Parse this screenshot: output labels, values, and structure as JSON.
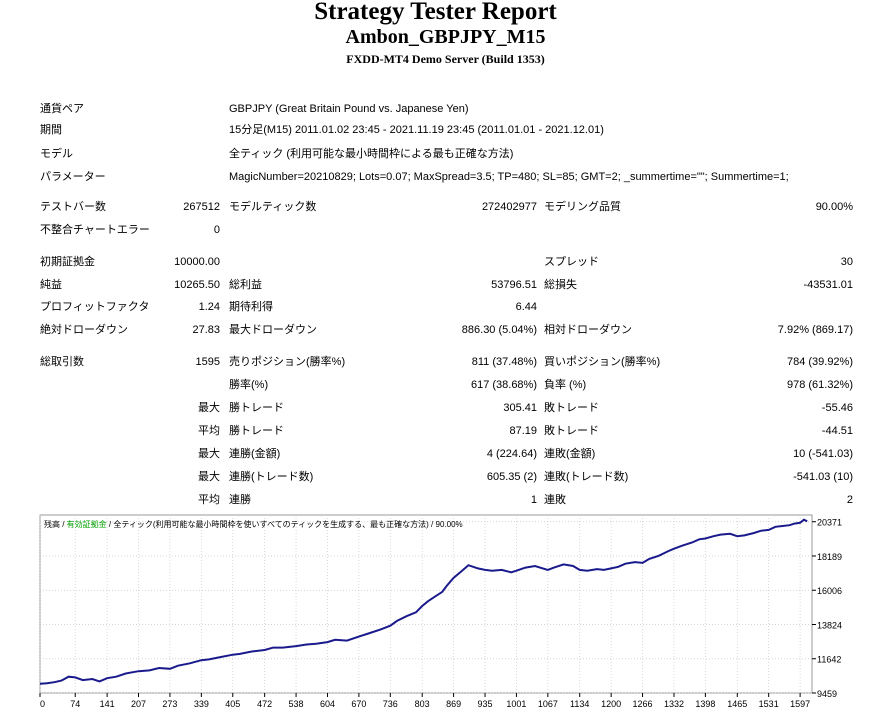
{
  "header": {
    "title": "Strategy Tester Report",
    "subtitle": "Ambon_GBPJPY_M15",
    "server": "FXDD-MT4 Demo Server (Build 1353)"
  },
  "info": [
    {
      "label": "通貨ペア",
      "value": "GBPJPY (Great Britain Pound vs. Japanese Yen)"
    },
    {
      "label": "期間",
      "value": "15分足(M15) 2011.01.02 23:45 - 2021.11.19 23:45 (2011.01.01 - 2021.12.01)"
    },
    {
      "label": "モデル",
      "value": "全ティック (利用可能な最小時間枠による最も正確な方法)"
    },
    {
      "label": "パラメーター",
      "value": "MagicNumber=20210829; Lots=0.07; MaxSpread=3.5; TP=480; SL=85; GMT=2; _summertime=\"\"; Summertime=1;"
    }
  ],
  "stats": {
    "bars_label": "テストバー数",
    "bars_value": "267512",
    "ticks_label": "モデルティック数",
    "ticks_value": "272402977",
    "quality_label": "モデリング品質",
    "quality_value": "90.00%",
    "mismatch_label": "不整合チャートエラー",
    "mismatch_value": "0",
    "deposit_label": "初期証拠金",
    "deposit_value": "10000.00",
    "spread_label": "スプレッド",
    "spread_value": "30",
    "net_label": "純益",
    "net_value": "10265.50",
    "gross_profit_label": "総利益",
    "gross_profit_value": "53796.51",
    "gross_loss_label": "総損失",
    "gross_loss_value": "-43531.01",
    "pf_label": "プロフィットファクタ",
    "pf_value": "1.24",
    "expected_label": "期待利得",
    "expected_value": "6.44",
    "abs_dd_label": "絶対ドローダウン",
    "abs_dd_value": "27.83",
    "max_dd_label": "最大ドローダウン",
    "max_dd_value": "886.30 (5.04%)",
    "rel_dd_label": "相対ドローダウン",
    "rel_dd_value": "7.92% (869.17)",
    "trades_label": "総取引数",
    "trades_value": "1595",
    "short_label": "売りポジション(勝率%)",
    "short_value": "811 (37.48%)",
    "long_label": "買いポジション(勝率%)",
    "long_value": "784 (39.92%)",
    "win_rate_label": "勝率(%)",
    "win_rate_value": "617 (38.68%)",
    "loss_rate_label": "負率 (%)",
    "loss_rate_value": "978 (61.32%)",
    "max_label": "最大",
    "avg_label": "平均",
    "max_win_label": "勝トレード",
    "max_win_value": "305.41",
    "max_loss_label": "敗トレード",
    "max_loss_value": "-55.46",
    "avg_win_label": "勝トレード",
    "avg_win_value": "87.19",
    "avg_loss_label": "敗トレード",
    "avg_loss_value": "-44.51",
    "max_cons_win_label": "連勝(金額)",
    "max_cons_win_value": "4 (224.64)",
    "max_cons_loss_label": "連敗(金額)",
    "max_cons_loss_value": "10 (-541.03)",
    "max_cons_profit_label": "連勝(トレード数)",
    "max_cons_profit_value": "605.35 (2)",
    "max_cons_lossamt_label": "連敗(トレード数)",
    "max_cons_lossamt_value": "-541.03 (10)",
    "avg_cons_win_label": "連勝",
    "avg_cons_win_value": "1",
    "avg_cons_loss_label": "連敗",
    "avg_cons_loss_value": "2"
  },
  "chart_data": {
    "type": "line",
    "legend": {
      "balance": "残高",
      "sep1": " / ",
      "equity": "有効証拠金",
      "sep2": " / ",
      "rest": "全ティック(利用可能な最小時間枠を使いすべてのティックを生成する、最も正確な方法) / 90.00%"
    },
    "colors": {
      "balance": "#1a1a8c",
      "equity": "#00a000",
      "grid": "#c8c8c8"
    },
    "x_ticks": [
      0,
      74,
      141,
      207,
      273,
      339,
      405,
      472,
      538,
      604,
      670,
      736,
      803,
      869,
      935,
      1001,
      1067,
      1134,
      1200,
      1266,
      1332,
      1398,
      1465,
      1531,
      1597
    ],
    "y_ticks": [
      9459,
      11642,
      13824,
      16006,
      18189,
      20371
    ],
    "xlim": [
      0,
      1622
    ],
    "ylim": [
      9459,
      20800
    ],
    "series": [
      {
        "name": "残高",
        "x": [
          0,
          15,
          30,
          45,
          60,
          74,
          90,
          110,
          125,
          141,
          160,
          180,
          207,
          230,
          250,
          273,
          290,
          315,
          339,
          355,
          380,
          405,
          420,
          445,
          472,
          490,
          510,
          538,
          560,
          580,
          604,
          620,
          645,
          670,
          690,
          715,
          736,
          750,
          770,
          790,
          803,
          815,
          830,
          845,
          855,
          869,
          885,
          900,
          920,
          935,
          950,
          970,
          990,
          1001,
          1020,
          1040,
          1067,
          1080,
          1100,
          1120,
          1134,
          1150,
          1170,
          1185,
          1200,
          1215,
          1230,
          1250,
          1266,
          1280,
          1300,
          1320,
          1332,
          1350,
          1370,
          1385,
          1398,
          1415,
          1430,
          1450,
          1465,
          1480,
          1500,
          1515,
          1531,
          1545,
          1560,
          1575,
          1585,
          1597,
          1605,
          1612
        ],
        "y": [
          10050,
          10080,
          10150,
          10250,
          10500,
          10450,
          10280,
          10350,
          10200,
          10400,
          10500,
          10700,
          10850,
          10900,
          11050,
          11000,
          11200,
          11350,
          11550,
          11600,
          11750,
          11900,
          11950,
          12100,
          12200,
          12350,
          12350,
          12450,
          12550,
          12600,
          12700,
          12850,
          12800,
          13050,
          13250,
          13500,
          13750,
          14050,
          14350,
          14600,
          15000,
          15300,
          15600,
          15900,
          16300,
          16800,
          17200,
          17600,
          17400,
          17300,
          17250,
          17300,
          17150,
          17250,
          17450,
          17550,
          17300,
          17450,
          17650,
          17550,
          17300,
          17250,
          17350,
          17300,
          17400,
          17500,
          17700,
          17800,
          17750,
          18000,
          18200,
          18500,
          18650,
          18850,
          19050,
          19250,
          19300,
          19450,
          19550,
          19600,
          19450,
          19500,
          19650,
          19800,
          19850,
          20050,
          20100,
          20150,
          20250,
          20300,
          20500,
          20400
        ]
      }
    ]
  }
}
